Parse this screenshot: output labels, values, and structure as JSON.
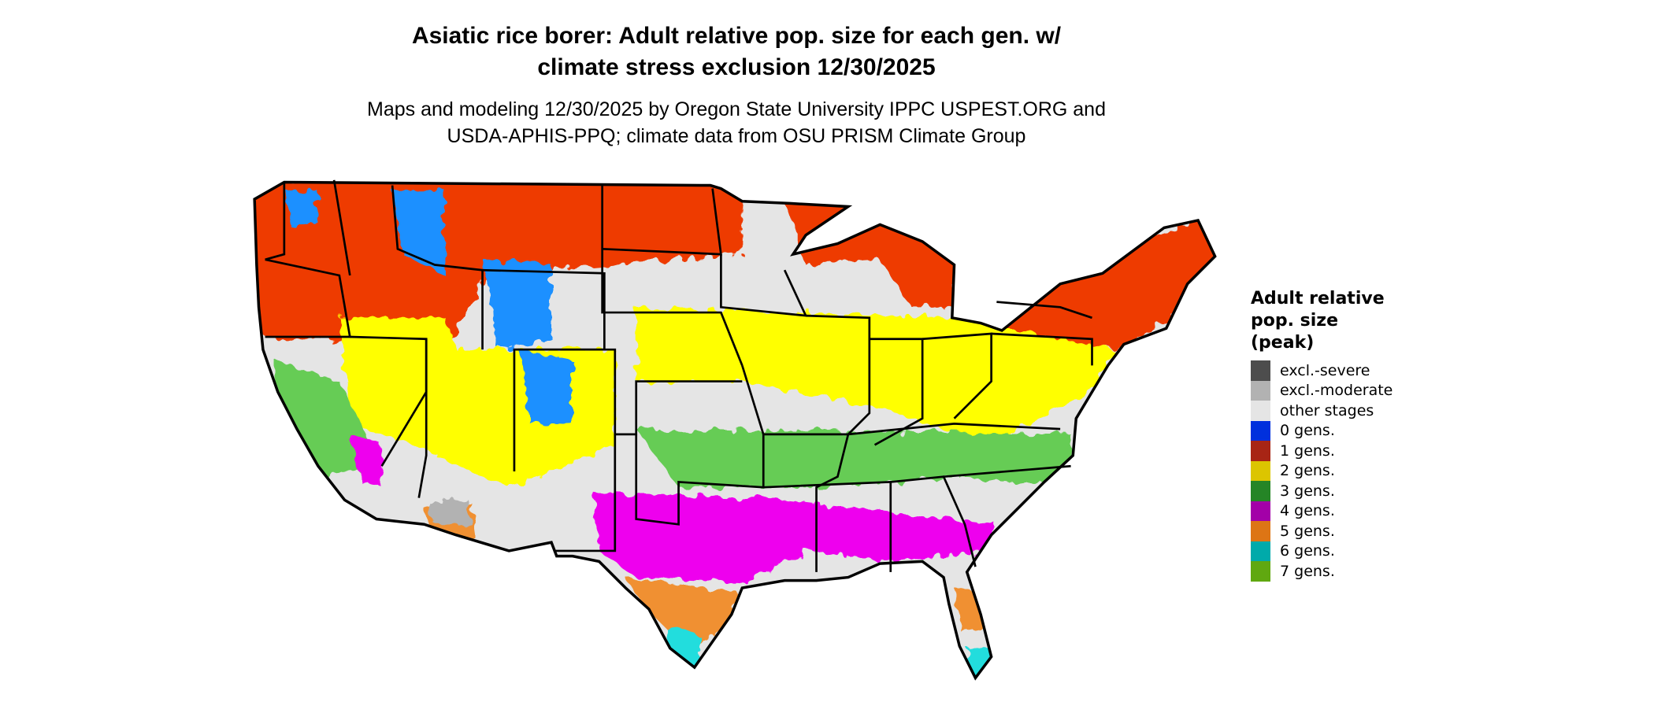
{
  "title": {
    "line1": "Asiatic rice borer: Adult relative pop. size for each gen. w/",
    "line2": "climate stress exclusion 12/30/2025"
  },
  "subtitle": {
    "line1": "Maps and modeling 12/30/2025 by Oregon State University IPPC USPEST.ORG and",
    "line2": "USDA-APHIS-PPQ; climate data from OSU PRISM Climate Group"
  },
  "legend": {
    "title_lines": [
      "Adult relative",
      "pop. size",
      "(peak)"
    ],
    "items": [
      {
        "label": "excl.-severe",
        "color": "#4d4d4d"
      },
      {
        "label": "excl.-moderate",
        "color": "#b2b2b2"
      },
      {
        "label": "other stages",
        "color": "#e5e5e5"
      },
      {
        "label": "0 gens.",
        "color": "#0030dd"
      },
      {
        "label": "1 gens.",
        "color": "#a82515"
      },
      {
        "label": "2 gens.",
        "color": "#dcc500"
      },
      {
        "label": "3 gens.",
        "color": "#258526"
      },
      {
        "label": "4 gens.",
        "color": "#a300a8"
      },
      {
        "label": "5 gens.",
        "color": "#dd7515"
      },
      {
        "label": "6 gens.",
        "color": "#00aaaa"
      },
      {
        "label": "7 gens.",
        "color": "#60a810"
      }
    ]
  },
  "map": {
    "region": "Contiguous United States",
    "background_color": "#e5e5e5",
    "border_color": "#000000"
  }
}
